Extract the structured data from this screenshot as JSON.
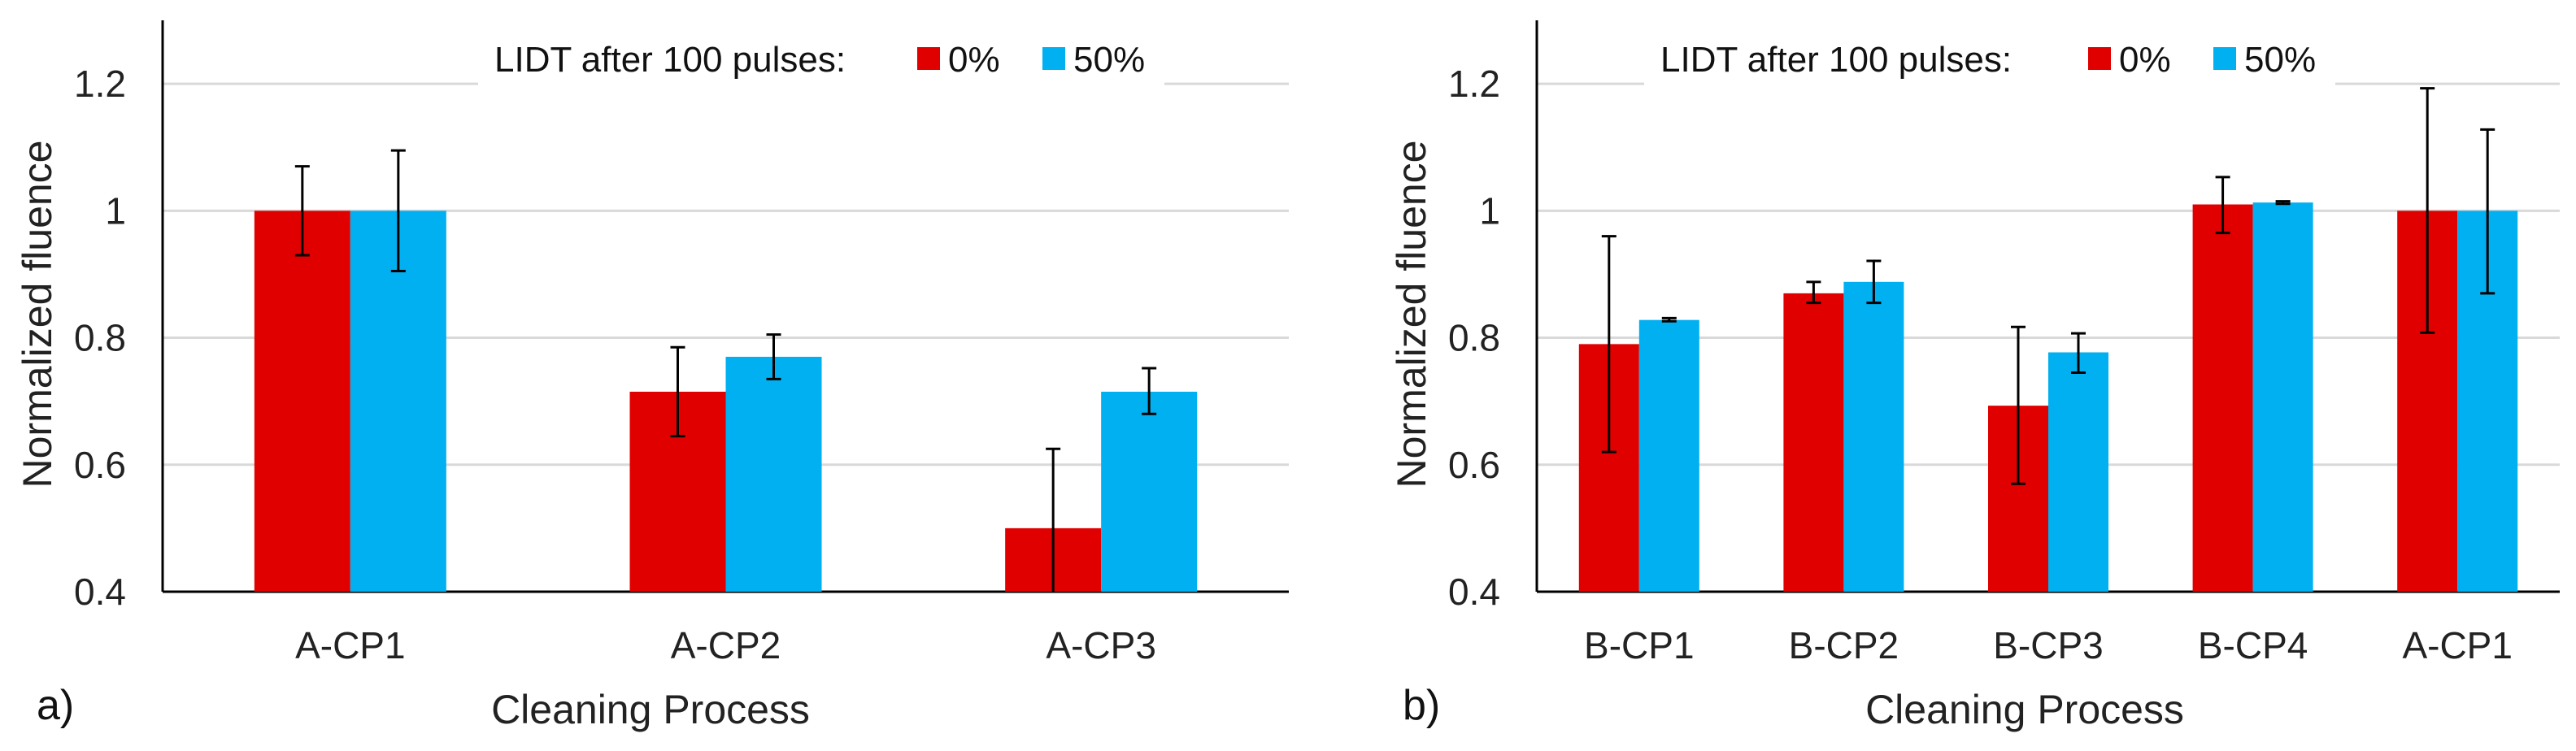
{
  "colors": {
    "series0": "#e00000",
    "series1": "#00b0f0",
    "grid": "#d9d9d9",
    "axis": "#000000"
  },
  "chart_data": [
    {
      "type": "bar",
      "panel_label": "a)",
      "xlabel": "Cleaning Process",
      "ylabel": "Normalized fluence",
      "ylim": [
        0.4,
        1.3
      ],
      "yticks": [
        "0.4",
        "0.6",
        "0.8",
        "1",
        "1.2"
      ],
      "ytick_values": [
        0.4,
        0.6,
        0.8,
        1.0,
        1.2
      ],
      "grid": true,
      "legend_title": "LIDT after 100 pulses:",
      "legend_position": "top-right",
      "categories": [
        "A-CP1",
        "A-CP2",
        "A-CP3"
      ],
      "series": [
        {
          "name": "0%",
          "values": [
            1.0,
            0.715,
            0.5
          ],
          "err_low": [
            0.93,
            0.645,
            0.4
          ],
          "err_high": [
            1.07,
            0.785,
            0.625
          ]
        },
        {
          "name": "50%",
          "values": [
            1.0,
            0.77,
            0.715
          ],
          "err_low": [
            0.905,
            0.735,
            0.68
          ],
          "err_high": [
            1.095,
            0.805,
            0.752
          ]
        }
      ]
    },
    {
      "type": "bar",
      "panel_label": "b)",
      "xlabel": "Cleaning Process",
      "ylabel": "Normalized fluence",
      "ylim": [
        0.4,
        1.3
      ],
      "yticks": [
        "0.4",
        "0.6",
        "0.8",
        "1",
        "1.2"
      ],
      "ytick_values": [
        0.4,
        0.6,
        0.8,
        1.0,
        1.2
      ],
      "grid": true,
      "legend_title": "LIDT after 100 pulses:",
      "legend_position": "top-right",
      "categories": [
        "B-CP1",
        "B-CP2",
        "B-CP3",
        "B-CP4",
        "A-CP1"
      ],
      "series": [
        {
          "name": "0%",
          "values": [
            0.79,
            0.87,
            0.693,
            1.01,
            1.0
          ],
          "err_low": [
            0.62,
            0.855,
            0.57,
            0.965,
            0.808
          ],
          "err_high": [
            0.96,
            0.888,
            0.817,
            1.053,
            1.193
          ]
        },
        {
          "name": "50%",
          "values": [
            0.828,
            0.888,
            0.777,
            1.013,
            1.0
          ],
          "err_low": [
            0.826,
            0.855,
            0.745,
            1.011,
            0.87
          ],
          "err_high": [
            0.831,
            0.921,
            0.807,
            1.015,
            1.128
          ]
        }
      ]
    }
  ]
}
